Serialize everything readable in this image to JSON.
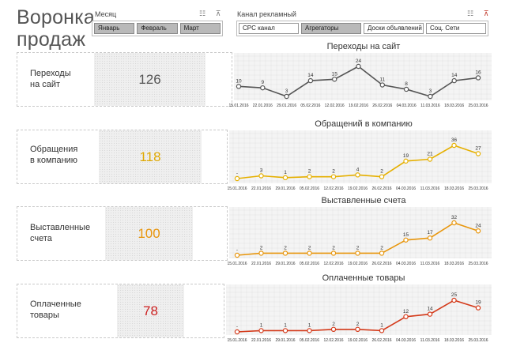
{
  "title_line1": "Воронка",
  "title_line2": "продаж",
  "filters": {
    "month": {
      "label": "Месяц",
      "options": [
        "Январь",
        "Февраль",
        "Март"
      ],
      "selected": [
        "Январь",
        "Февраль",
        "Март"
      ]
    },
    "channel": {
      "label": "Канал рекламный",
      "options": [
        "CPC канал",
        "Агрегаторы",
        "Доски объявлений",
        "Соц. Сети"
      ],
      "selected": [
        "Агрегаторы"
      ]
    }
  },
  "x_dates": [
    "15.01.2016",
    "22.01.2016",
    "29.01.2016",
    "05.02.2016",
    "12.02.2016",
    "19.02.2016",
    "26.02.2016",
    "04.03.2016",
    "11.03.2016",
    "18.03.2016",
    "25.03.2016"
  ],
  "sections": [
    {
      "label_line1": "Переходы",
      "label_line2": "на сайт",
      "value": "126",
      "value_color": "#555555"
    },
    {
      "label_line1": "Обращения",
      "label_line2": "в компанию",
      "value": "118",
      "value_color": "#e0a800"
    },
    {
      "label_line1": "Выставленные",
      "label_line2": "счета",
      "value": "100",
      "value_color": "#e8950c"
    },
    {
      "label_line1": "Оплаченные",
      "label_line2": "товары",
      "value": "78",
      "value_color": "#cc1f1f"
    }
  ],
  "chart_data": [
    {
      "type": "line",
      "title": "Переходы на сайт",
      "x": [
        "15.01.2016",
        "22.01.2016",
        "29.01.2016",
        "05.02.2016",
        "12.02.2016",
        "19.02.2016",
        "26.02.2016",
        "04.03.2016",
        "11.03.2016",
        "18.03.2016",
        "25.03.2016"
      ],
      "values": [
        10,
        9,
        3,
        14,
        15,
        24,
        11,
        8,
        3,
        14,
        16
      ],
      "labels": [
        "10",
        "9",
        "3",
        "14",
        "15",
        "24",
        "11",
        "8",
        "3",
        "14",
        "16"
      ],
      "color": "#555555"
    },
    {
      "type": "line",
      "title": "Обращений в компанию",
      "x": [
        "15.01.2016",
        "22.01.2016",
        "29.01.2016",
        "05.02.2016",
        "12.02.2016",
        "19.02.2016",
        "26.02.2016",
        "04.03.2016",
        "11.03.2016",
        "18.03.2016",
        "25.03.2016"
      ],
      "values": [
        0,
        3,
        1,
        2,
        2,
        4,
        2,
        19,
        21,
        36,
        27
      ],
      "labels": [
        "-",
        "3",
        "1",
        "2",
        "2",
        "4",
        "2",
        "19",
        "21",
        "36",
        "27"
      ],
      "color": "#e6b000"
    },
    {
      "type": "line",
      "title": "Выставленные счета",
      "x": [
        "15.01.2016",
        "22.01.2016",
        "29.01.2016",
        "05.02.2016",
        "12.02.2016",
        "19.02.2016",
        "26.02.2016",
        "04.03.2016",
        "11.03.2016",
        "18.03.2016",
        "25.03.2016"
      ],
      "values": [
        0,
        2,
        2,
        2,
        2,
        2,
        2,
        15,
        17,
        32,
        24
      ],
      "labels": [
        "-",
        "2",
        "2",
        "2",
        "2",
        "2",
        "2",
        "15",
        "17",
        "32",
        "24"
      ],
      "color": "#e8960c"
    },
    {
      "type": "line",
      "title": "Оплаченные товары",
      "x": [
        "15.01.2016",
        "22.01.2016",
        "29.01.2016",
        "05.02.2016",
        "12.02.2016",
        "19.02.2016",
        "26.02.2016",
        "04.03.2016",
        "11.03.2016",
        "18.03.2016",
        "25.03.2016"
      ],
      "values": [
        0,
        1,
        1,
        1,
        2,
        2,
        1,
        12,
        14,
        25,
        19
      ],
      "labels": [
        "-",
        "1",
        "1",
        "1",
        "2",
        "2",
        "1",
        "12",
        "14",
        "25",
        "19"
      ],
      "color": "#d43a1a"
    }
  ]
}
